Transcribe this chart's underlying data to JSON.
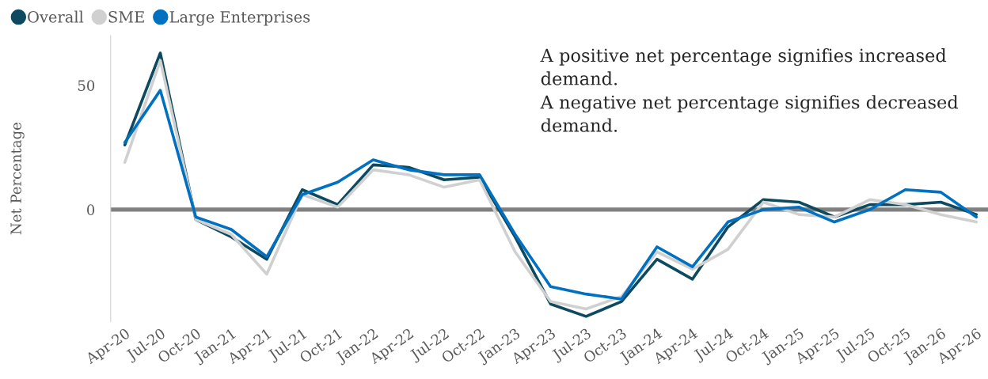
{
  "chart_data": {
    "type": "line",
    "ylabel": "Net Percentage",
    "categories": [
      "Apr-20",
      "Jul-20",
      "Oct-20",
      "Jan-21",
      "Apr-21",
      "Jul-21",
      "Oct-21",
      "Jan-22",
      "Apr-22",
      "Jul-22",
      "Oct-22",
      "Jan-23",
      "Apr-23",
      "Jul-23",
      "Oct-23",
      "Jan-24",
      "Apr-24",
      "Jul-24",
      "Oct-24",
      "Jan-25",
      "Apr-25",
      "Jul-25",
      "Oct-25",
      "Jan-26",
      "Apr-26"
    ],
    "series": [
      {
        "name": "Overall",
        "color": "#0d4a5f",
        "values": [
          26,
          63,
          -4,
          -11,
          -20,
          8,
          2,
          18,
          17,
          12,
          13,
          -11,
          -38,
          -43,
          -37,
          -20,
          -28,
          -7,
          4,
          3,
          -3,
          2,
          2,
          3,
          -2
        ]
      },
      {
        "name": "SME",
        "color": "#d0d0d0",
        "values": [
          19,
          60,
          -4,
          -10,
          -26,
          6,
          1,
          16,
          14,
          9,
          12,
          -17,
          -37,
          -40,
          -35,
          -17,
          -24,
          -16,
          3,
          -2,
          -3,
          4,
          2,
          -2,
          -5
        ]
      },
      {
        "name": "Large Enterprises",
        "color": "#0070c0",
        "values": [
          27,
          48,
          -3,
          -8,
          -19,
          6,
          11,
          20,
          16,
          14,
          14,
          -10,
          -31,
          -34,
          -36,
          -15,
          -23,
          -5,
          0,
          1,
          -5,
          0,
          8,
          7,
          -3
        ]
      }
    ],
    "ylim": [
      -45,
      70
    ],
    "yticks": [
      0,
      50
    ],
    "ref_lines": [
      {
        "axis": "y",
        "value": 0,
        "color": "#808080"
      }
    ],
    "annotations": [
      "A positive net percentage signifies increased demand.",
      "A negative net percentage signifies decreased demand."
    ],
    "legend": "top left"
  }
}
